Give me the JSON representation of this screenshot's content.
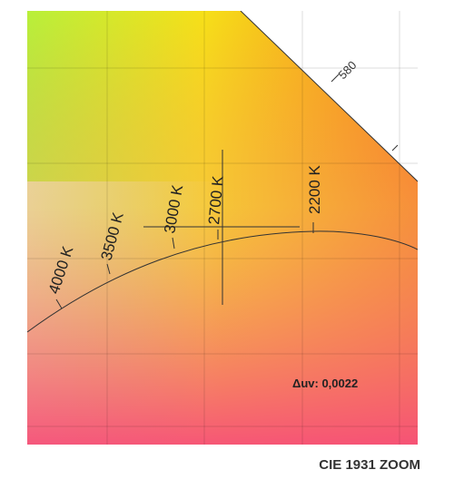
{
  "diagram": {
    "cct_labels": [
      "4000 K",
      "3500 K",
      "3000 K",
      "2700 K",
      "2200 K"
    ],
    "wavelength_label": "580",
    "delta_uv": "Δuv: 0,0022",
    "caption": "CIE 1931 ZOOM"
  }
}
